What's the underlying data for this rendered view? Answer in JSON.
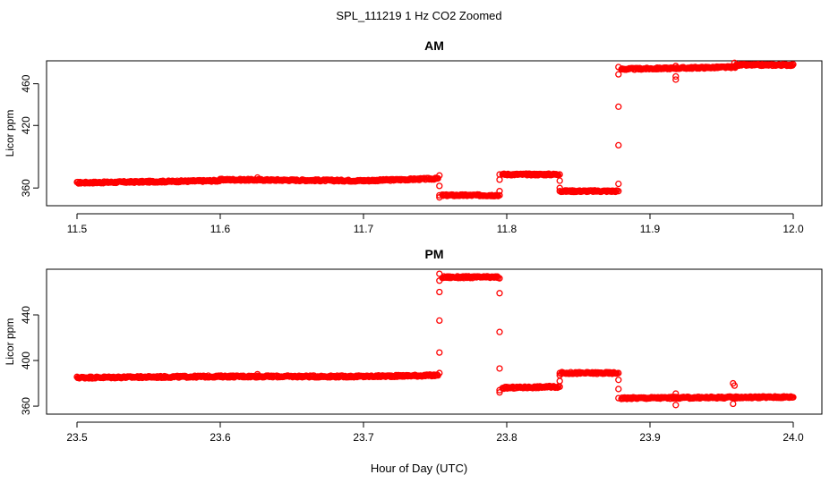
{
  "figure": {
    "title": "SPL_111219  1 Hz CO2 Zoomed",
    "xlabel": "Hour of Day (UTC)"
  },
  "colors": {
    "points": "#ff0000",
    "axis": "#000000",
    "background": "#ffffff"
  },
  "chart_data": [
    {
      "type": "scatter",
      "title": "AM",
      "xlabel": "Hour of Day (UTC)",
      "ylabel": "Licor ppm",
      "xlim": [
        11.5,
        12.0
      ],
      "ylim": [
        343,
        482
      ],
      "xticks": [
        "11.5",
        "11.6",
        "11.7",
        "11.8",
        "11.9",
        "12.0"
      ],
      "yticks": [
        "360",
        "420",
        "460"
      ],
      "ytick_values": [
        360,
        420,
        460
      ],
      "grid": false,
      "series": [
        {
          "segments": [
            {
              "x0": 11.5,
              "x1": 11.55,
              "y0": 365,
              "y1": 366
            },
            {
              "x0": 11.55,
              "x1": 11.6,
              "y0": 366,
              "y1": 367
            },
            {
              "x0": 11.6,
              "x1": 11.7,
              "y0": 368,
              "y1": 367
            },
            {
              "x0": 11.7,
              "x1": 11.752,
              "y0": 367,
              "y1": 369
            },
            {
              "x0": 11.755,
              "x1": 11.794,
              "y0": 353,
              "y1": 353
            },
            {
              "x0": 11.797,
              "x1": 11.836,
              "y0": 373,
              "y1": 373
            },
            {
              "x0": 11.838,
              "x1": 11.877,
              "y0": 357,
              "y1": 357
            },
            {
              "x0": 11.88,
              "x1": 11.96,
              "y0": 474,
              "y1": 476
            },
            {
              "x0": 11.96,
              "x1": 12.0,
              "y0": 478,
              "y1": 478
            }
          ],
          "transitions": [
            {
              "x": 11.753,
              "y": [
                372,
                362,
                353,
                351
              ]
            },
            {
              "x": 11.795,
              "y": [
                353,
                357,
                368,
                373
              ]
            },
            {
              "x": 11.837,
              "y": [
                373,
                367,
                360,
                357
              ]
            },
            {
              "x": 11.878,
              "y": [
                357,
                364,
                401,
                438,
                469,
                476
              ]
            }
          ],
          "outliers": [
            {
              "x": 11.626,
              "y": 370
            },
            {
              "x": 11.918,
              "y": 467
            },
            {
              "x": 11.918,
              "y": 464
            },
            {
              "x": 11.918,
              "y": 477
            },
            {
              "x": 11.959,
              "y": 480
            }
          ]
        }
      ]
    },
    {
      "type": "scatter",
      "title": "PM",
      "xlabel": "Hour of Day (UTC)",
      "ylabel": "Licor ppm",
      "xlim": [
        23.5,
        24.0
      ],
      "ylim": [
        353,
        480
      ],
      "xticks": [
        "23.5",
        "23.6",
        "23.7",
        "23.8",
        "23.9",
        "24.0"
      ],
      "yticks": [
        "360",
        "400",
        "440"
      ],
      "ytick_values": [
        360,
        400,
        440
      ],
      "grid": false,
      "series": [
        {
          "segments": [
            {
              "x0": 23.5,
              "x1": 23.6,
              "y0": 385,
              "y1": 386
            },
            {
              "x0": 23.6,
              "x1": 23.7,
              "y0": 386,
              "y1": 386
            },
            {
              "x0": 23.7,
              "x1": 23.752,
              "y0": 386,
              "y1": 387
            },
            {
              "x0": 23.755,
              "x1": 23.794,
              "y0": 473,
              "y1": 473
            },
            {
              "x0": 23.797,
              "x1": 23.836,
              "y0": 376,
              "y1": 377
            },
            {
              "x0": 23.838,
              "x1": 23.877,
              "y0": 389,
              "y1": 389
            },
            {
              "x0": 23.88,
              "x1": 24.0,
              "y0": 367,
              "y1": 368
            }
          ],
          "transitions": [
            {
              "x": 23.753,
              "y": [
                389,
                407,
                435,
                460,
                470,
                476
              ]
            },
            {
              "x": 23.795,
              "y": [
                472,
                459,
                425,
                393,
                374,
                372
              ]
            },
            {
              "x": 23.837,
              "y": [
                377,
                382,
                387,
                389
              ]
            },
            {
              "x": 23.878,
              "y": [
                389,
                383,
                375,
                367
              ]
            }
          ],
          "outliers": [
            {
              "x": 23.626,
              "y": 388
            },
            {
              "x": 23.918,
              "y": 361
            },
            {
              "x": 23.918,
              "y": 371
            },
            {
              "x": 23.958,
              "y": 380
            },
            {
              "x": 23.958,
              "y": 362
            },
            {
              "x": 23.959,
              "y": 378
            }
          ]
        }
      ]
    }
  ]
}
